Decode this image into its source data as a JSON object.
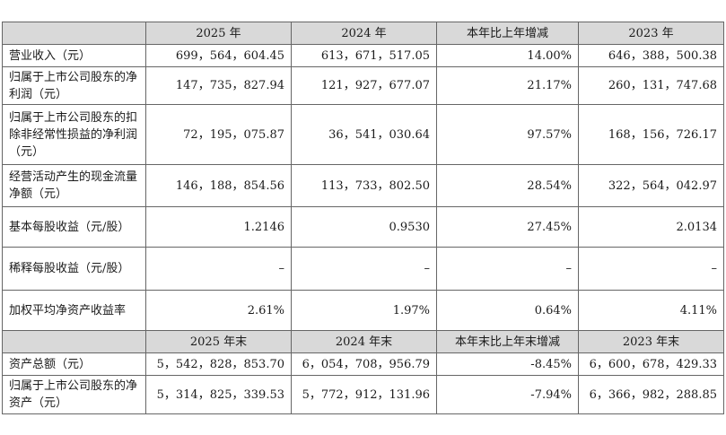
{
  "header_current": [
    "",
    "2025 年",
    "2024 年",
    "本年比上年增减",
    "2023 年"
  ],
  "header_period_end": [
    "",
    "2025 年末",
    "2024 年末",
    "本年末比上年末增减",
    "2023 年末"
  ],
  "rows": [
    {
      "label": "营业收入（元）",
      "values": [
        "699，564，604.45",
        "613，671，517.05",
        "14.00%",
        "646，388，500.38"
      ]
    },
    {
      "label": "归属于上市公司股东的净利润（元）",
      "values": [
        "147，735，827.94",
        "121，927，677.07",
        "21.17%",
        "260，131，747.68"
      ]
    },
    {
      "label": "归属于上市公司股东的扣除非经常性损益的净利润（元）",
      "values": [
        "72，195，075.87",
        "36，541，030.64",
        "97.57%",
        "168，156，726.17"
      ]
    },
    {
      "label": "经营活动产生的现金流量净额（元）",
      "values": [
        "146，188，854.56",
        "113，733，802.50",
        "28.54%",
        "322，564，042.97"
      ]
    },
    {
      "label": "基本每股收益（元/股）",
      "values": [
        "1.2146",
        "0.9530",
        "27.45%",
        "2.0134"
      ]
    },
    {
      "label": "稀释每股收益（元/股）",
      "values": [
        "–",
        "–",
        "–",
        "–"
      ]
    },
    {
      "label": "加权平均净资产收益率",
      "values": [
        "2.61%",
        "1.97%",
        "0.64%",
        "4.11%"
      ]
    }
  ],
  "rows_period_end": [
    {
      "label": "资产总额（元）",
      "values": [
        "5，542，828，853.70",
        "6，054，708，956.79",
        "-8.45%",
        "6，600，678，429.33"
      ]
    },
    {
      "label": "归属于上市公司股东的净资产（元）",
      "values": [
        "5，314，825，339.53",
        "5，772，912，131.96",
        "-7.94%",
        "6，366，982，288.85"
      ]
    }
  ],
  "colors": {
    "header_background": "#d9d9d9",
    "border": "#666666",
    "text": "#1a1a1a"
  }
}
